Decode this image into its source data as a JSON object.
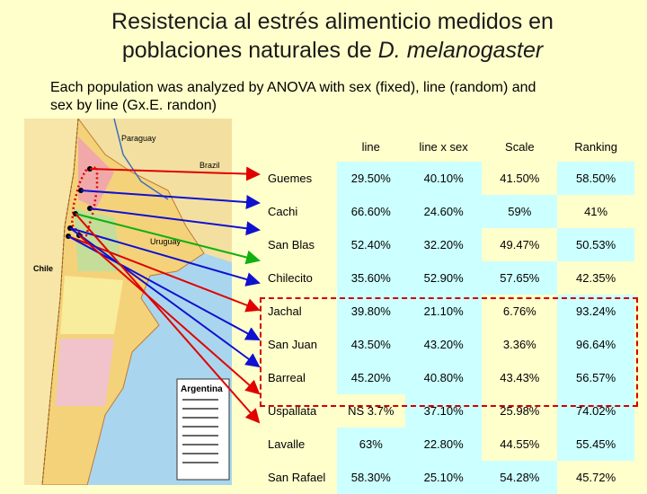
{
  "title_line1": "Resistencia al estrés  alimenticio medidos en",
  "title_line2_prefix": "poblaciones naturales de ",
  "title_line2_species": "D. melanogaster",
  "subtitle_line1": "Each population was analyzed by ANOVA with sex (fixed), line (random) and",
  "subtitle_line2": "sex by line (Gx.E. randon)",
  "columns": [
    "line",
    "line x sex",
    "Scale",
    "Ranking"
  ],
  "rows": [
    {
      "pop": "Guemes",
      "line": "29.50%",
      "lxs": "40.10%",
      "scale": "41.50%",
      "rank": "58.50%"
    },
    {
      "pop": "Cachi",
      "line": "66.60%",
      "lxs": "24.60%",
      "scale": "59%",
      "rank": "41%"
    },
    {
      "pop": "San Blas",
      "line": "52.40%",
      "lxs": "32.20%",
      "scale": "49.47%",
      "rank": "50.53%"
    },
    {
      "pop": "Chilecito",
      "line": "35.60%",
      "lxs": "52.90%",
      "scale": "57.65%",
      "rank": "42.35%"
    },
    {
      "pop": "Jachal",
      "line": "39.80%",
      "lxs": "21.10%",
      "scale": "6.76%",
      "rank": "93.24%"
    },
    {
      "pop": "San Juan",
      "line": "43.50%",
      "lxs": "43.20%",
      "scale": "3.36%",
      "rank": "96.64%"
    },
    {
      "pop": "Barreal",
      "line": "45.20%",
      "lxs": "40.80%",
      "scale": "43.43%",
      "rank": "56.57%"
    },
    {
      "pop": "Uspallata",
      "line": "NS 3.7%",
      "lxs": "37.10%",
      "scale": "25.98%",
      "rank": "74.02%"
    },
    {
      "pop": "Lavalle",
      "line": "63%",
      "lxs": "22.80%",
      "scale": "44.55%",
      "rank": "55.45%"
    },
    {
      "pop": "San Rafael",
      "line": "58.30%",
      "lxs": "25.10%",
      "scale": "54.28%",
      "rank": "45.72%"
    }
  ],
  "map_labels": {
    "paraguay": "Paraguay",
    "brazil": "Brazil",
    "chile": "Chile",
    "uruguay": "Uruguay",
    "argentina": "Argentina"
  },
  "colors": {
    "background": "#ffffcc",
    "highlight_cell": "#ccffff",
    "highlight_box": "#d00000",
    "arrow_red": "#e00000",
    "arrow_blue": "#1010d0",
    "arrow_green": "#10b010"
  }
}
